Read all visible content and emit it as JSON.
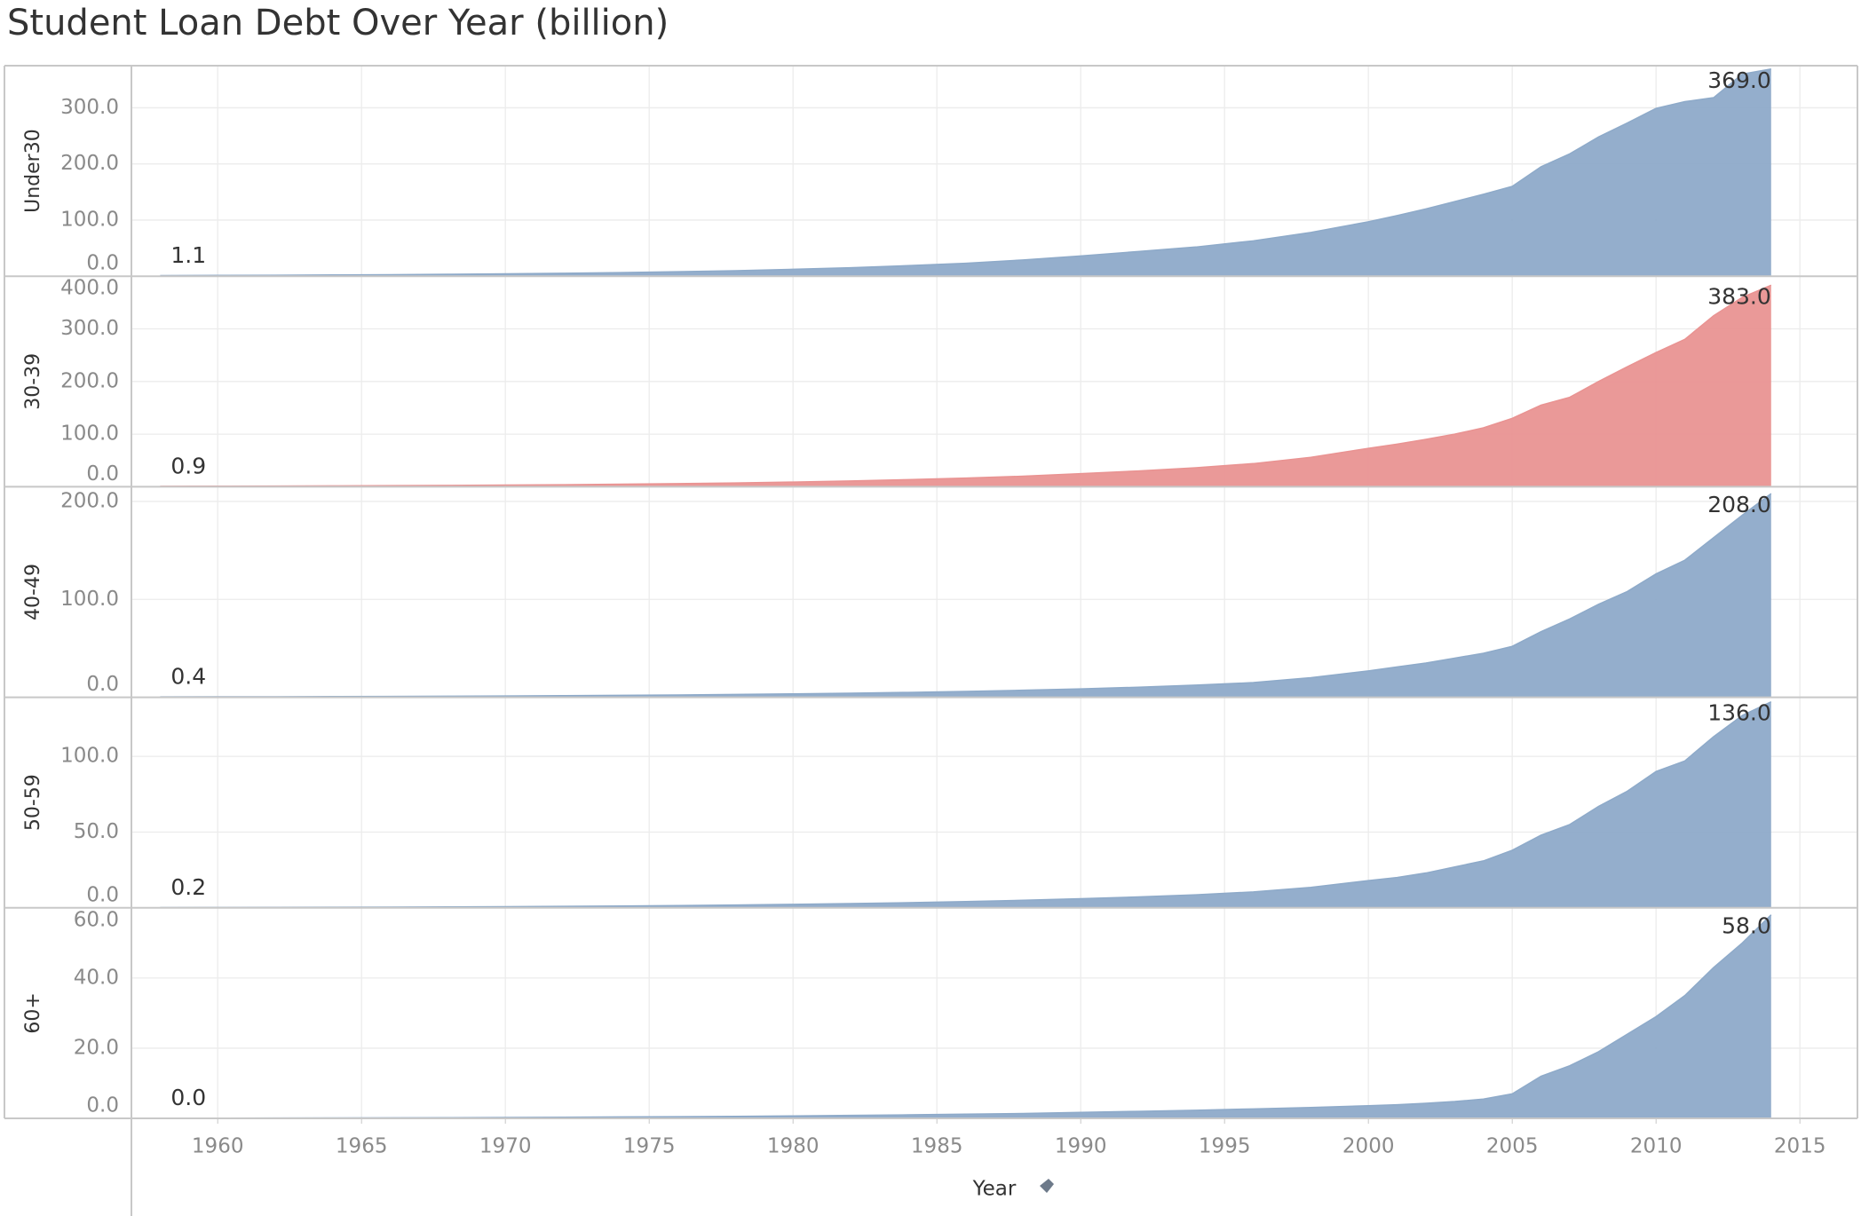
{
  "chart_data": {
    "type": "area",
    "title": "Student Loan Debt Over Year (billion)",
    "x_label": "Year",
    "x": [
      1958,
      1960,
      1962,
      1964,
      1966,
      1968,
      1970,
      1972,
      1974,
      1976,
      1978,
      1980,
      1982,
      1984,
      1986,
      1988,
      1990,
      1992,
      1994,
      1996,
      1998,
      2000,
      2001,
      2002,
      2003,
      2004,
      2005,
      2006,
      2007,
      2008,
      2009,
      2010,
      2011,
      2012,
      2013,
      2014
    ],
    "xlim": [
      1957,
      2017
    ],
    "xticks": [
      1960,
      1965,
      1970,
      1975,
      1980,
      1985,
      1990,
      1995,
      2000,
      2005,
      2010,
      2015
    ],
    "grid": true,
    "series": [
      {
        "name": "Under30",
        "color": "#8eaac9",
        "ylim": [
          0,
          375
        ],
        "yticks": [
          {
            "value": 0,
            "label": "0.0"
          },
          {
            "value": 100,
            "label": "100.0"
          },
          {
            "value": 200,
            "label": "200.0"
          },
          {
            "value": 300,
            "label": "300.0"
          }
        ],
        "values": [
          1.1,
          1.4,
          1.7,
          2.2,
          2.7,
          3.4,
          4.2,
          5.2,
          6.5,
          8.0,
          9.9,
          12.3,
          15.2,
          18.8,
          23,
          29,
          36,
          44,
          52,
          63,
          78,
          97,
          108,
          120,
          133,
          146,
          160,
          195,
          218,
          248,
          273,
          299,
          311,
          318,
          360,
          369
        ],
        "value_labels": [
          "1.1",
          null,
          null,
          null,
          null,
          null,
          null,
          null,
          null,
          null,
          null,
          null,
          null,
          null,
          null,
          null,
          null,
          null,
          null,
          null,
          null,
          null,
          null,
          null,
          null,
          null,
          null,
          null,
          null,
          null,
          null,
          null,
          null,
          null,
          null,
          "369.0"
        ]
      },
      {
        "name": "30-39",
        "color": "#e99392",
        "ylim": [
          0,
          400
        ],
        "yticks": [
          {
            "value": 0,
            "label": "0.0"
          },
          {
            "value": 100,
            "label": "100.0"
          },
          {
            "value": 200,
            "label": "200.0"
          },
          {
            "value": 300,
            "label": "300.0"
          },
          {
            "value": 400,
            "label": "400.0"
          }
        ],
        "values": [
          0.9,
          1.1,
          1.4,
          1.7,
          2.1,
          2.6,
          3.2,
          3.9,
          4.8,
          5.9,
          7.2,
          8.9,
          11,
          13.5,
          16.5,
          20,
          25,
          30,
          36,
          44,
          56,
          73,
          81,
          90,
          100,
          112,
          130,
          155,
          170,
          200,
          228,
          255,
          280,
          325,
          360,
          383
        ],
        "value_labels": [
          "0.9",
          null,
          null,
          null,
          null,
          null,
          null,
          null,
          null,
          null,
          null,
          null,
          null,
          null,
          null,
          null,
          null,
          null,
          null,
          null,
          null,
          null,
          null,
          null,
          null,
          null,
          null,
          null,
          null,
          null,
          null,
          null,
          null,
          null,
          null,
          "383.0"
        ]
      },
      {
        "name": "40-49",
        "color": "#8eaac9",
        "ylim": [
          0,
          215
        ],
        "yticks": [
          {
            "value": 0,
            "label": "0.0"
          },
          {
            "value": 100,
            "label": "100.0"
          },
          {
            "value": 200,
            "label": "200.0"
          }
        ],
        "values": [
          0.4,
          0.5,
          0.6,
          0.75,
          0.9,
          1.1,
          1.35,
          1.65,
          2,
          2.4,
          2.9,
          3.5,
          4.2,
          5,
          6,
          7.2,
          8.6,
          10.3,
          12.4,
          15,
          20,
          27,
          31,
          35,
          40,
          45,
          52,
          67,
          80,
          95,
          108,
          126,
          140,
          163,
          186,
          208
        ],
        "value_labels": [
          "0.4",
          null,
          null,
          null,
          null,
          null,
          null,
          null,
          null,
          null,
          null,
          null,
          null,
          null,
          null,
          null,
          null,
          null,
          null,
          null,
          null,
          null,
          null,
          null,
          null,
          null,
          null,
          null,
          null,
          null,
          null,
          null,
          null,
          null,
          null,
          "208.0"
        ]
      },
      {
        "name": "50-59",
        "color": "#8eaac9",
        "ylim": [
          0,
          139
        ],
        "yticks": [
          {
            "value": 0,
            "label": "0.0"
          },
          {
            "value": 50,
            "label": "50.0"
          },
          {
            "value": 100,
            "label": "100.0"
          }
        ],
        "values": [
          0.2,
          0.25,
          0.32,
          0.4,
          0.5,
          0.62,
          0.78,
          0.97,
          1.2,
          1.5,
          1.85,
          2.3,
          2.8,
          3.4,
          4.1,
          5,
          6,
          7.2,
          8.6,
          10.5,
          13.5,
          18,
          20,
          23,
          27,
          31,
          38,
          48,
          55,
          67,
          77,
          90,
          97,
          113,
          127,
          136
        ],
        "value_labels": [
          "0.2",
          null,
          null,
          null,
          null,
          null,
          null,
          null,
          null,
          null,
          null,
          null,
          null,
          null,
          null,
          null,
          null,
          null,
          null,
          null,
          null,
          null,
          null,
          null,
          null,
          null,
          null,
          null,
          null,
          null,
          null,
          null,
          null,
          null,
          null,
          "136.0"
        ]
      },
      {
        "name": "60+",
        "color": "#8eaac9",
        "ylim": [
          0,
          60
        ],
        "yticks": [
          {
            "value": 0,
            "label": "0.0"
          },
          {
            "value": 20,
            "label": "20.0"
          },
          {
            "value": 40,
            "label": "40.0"
          },
          {
            "value": 60,
            "label": "60.0"
          }
        ],
        "values": [
          0,
          0.05,
          0.08,
          0.12,
          0.16,
          0.2,
          0.25,
          0.32,
          0.4,
          0.48,
          0.58,
          0.7,
          0.85,
          1,
          1.2,
          1.4,
          1.7,
          2,
          2.3,
          2.7,
          3.1,
          3.6,
          3.9,
          4.3,
          4.8,
          5.5,
          7,
          12,
          15,
          19,
          24,
          29,
          35,
          43,
          50,
          58
        ],
        "value_labels": [
          "0.0",
          null,
          null,
          null,
          null,
          null,
          null,
          null,
          null,
          null,
          null,
          null,
          null,
          null,
          null,
          null,
          null,
          null,
          null,
          null,
          null,
          null,
          null,
          null,
          null,
          null,
          null,
          null,
          null,
          null,
          null,
          null,
          null,
          null,
          null,
          "58.0"
        ]
      }
    ]
  }
}
